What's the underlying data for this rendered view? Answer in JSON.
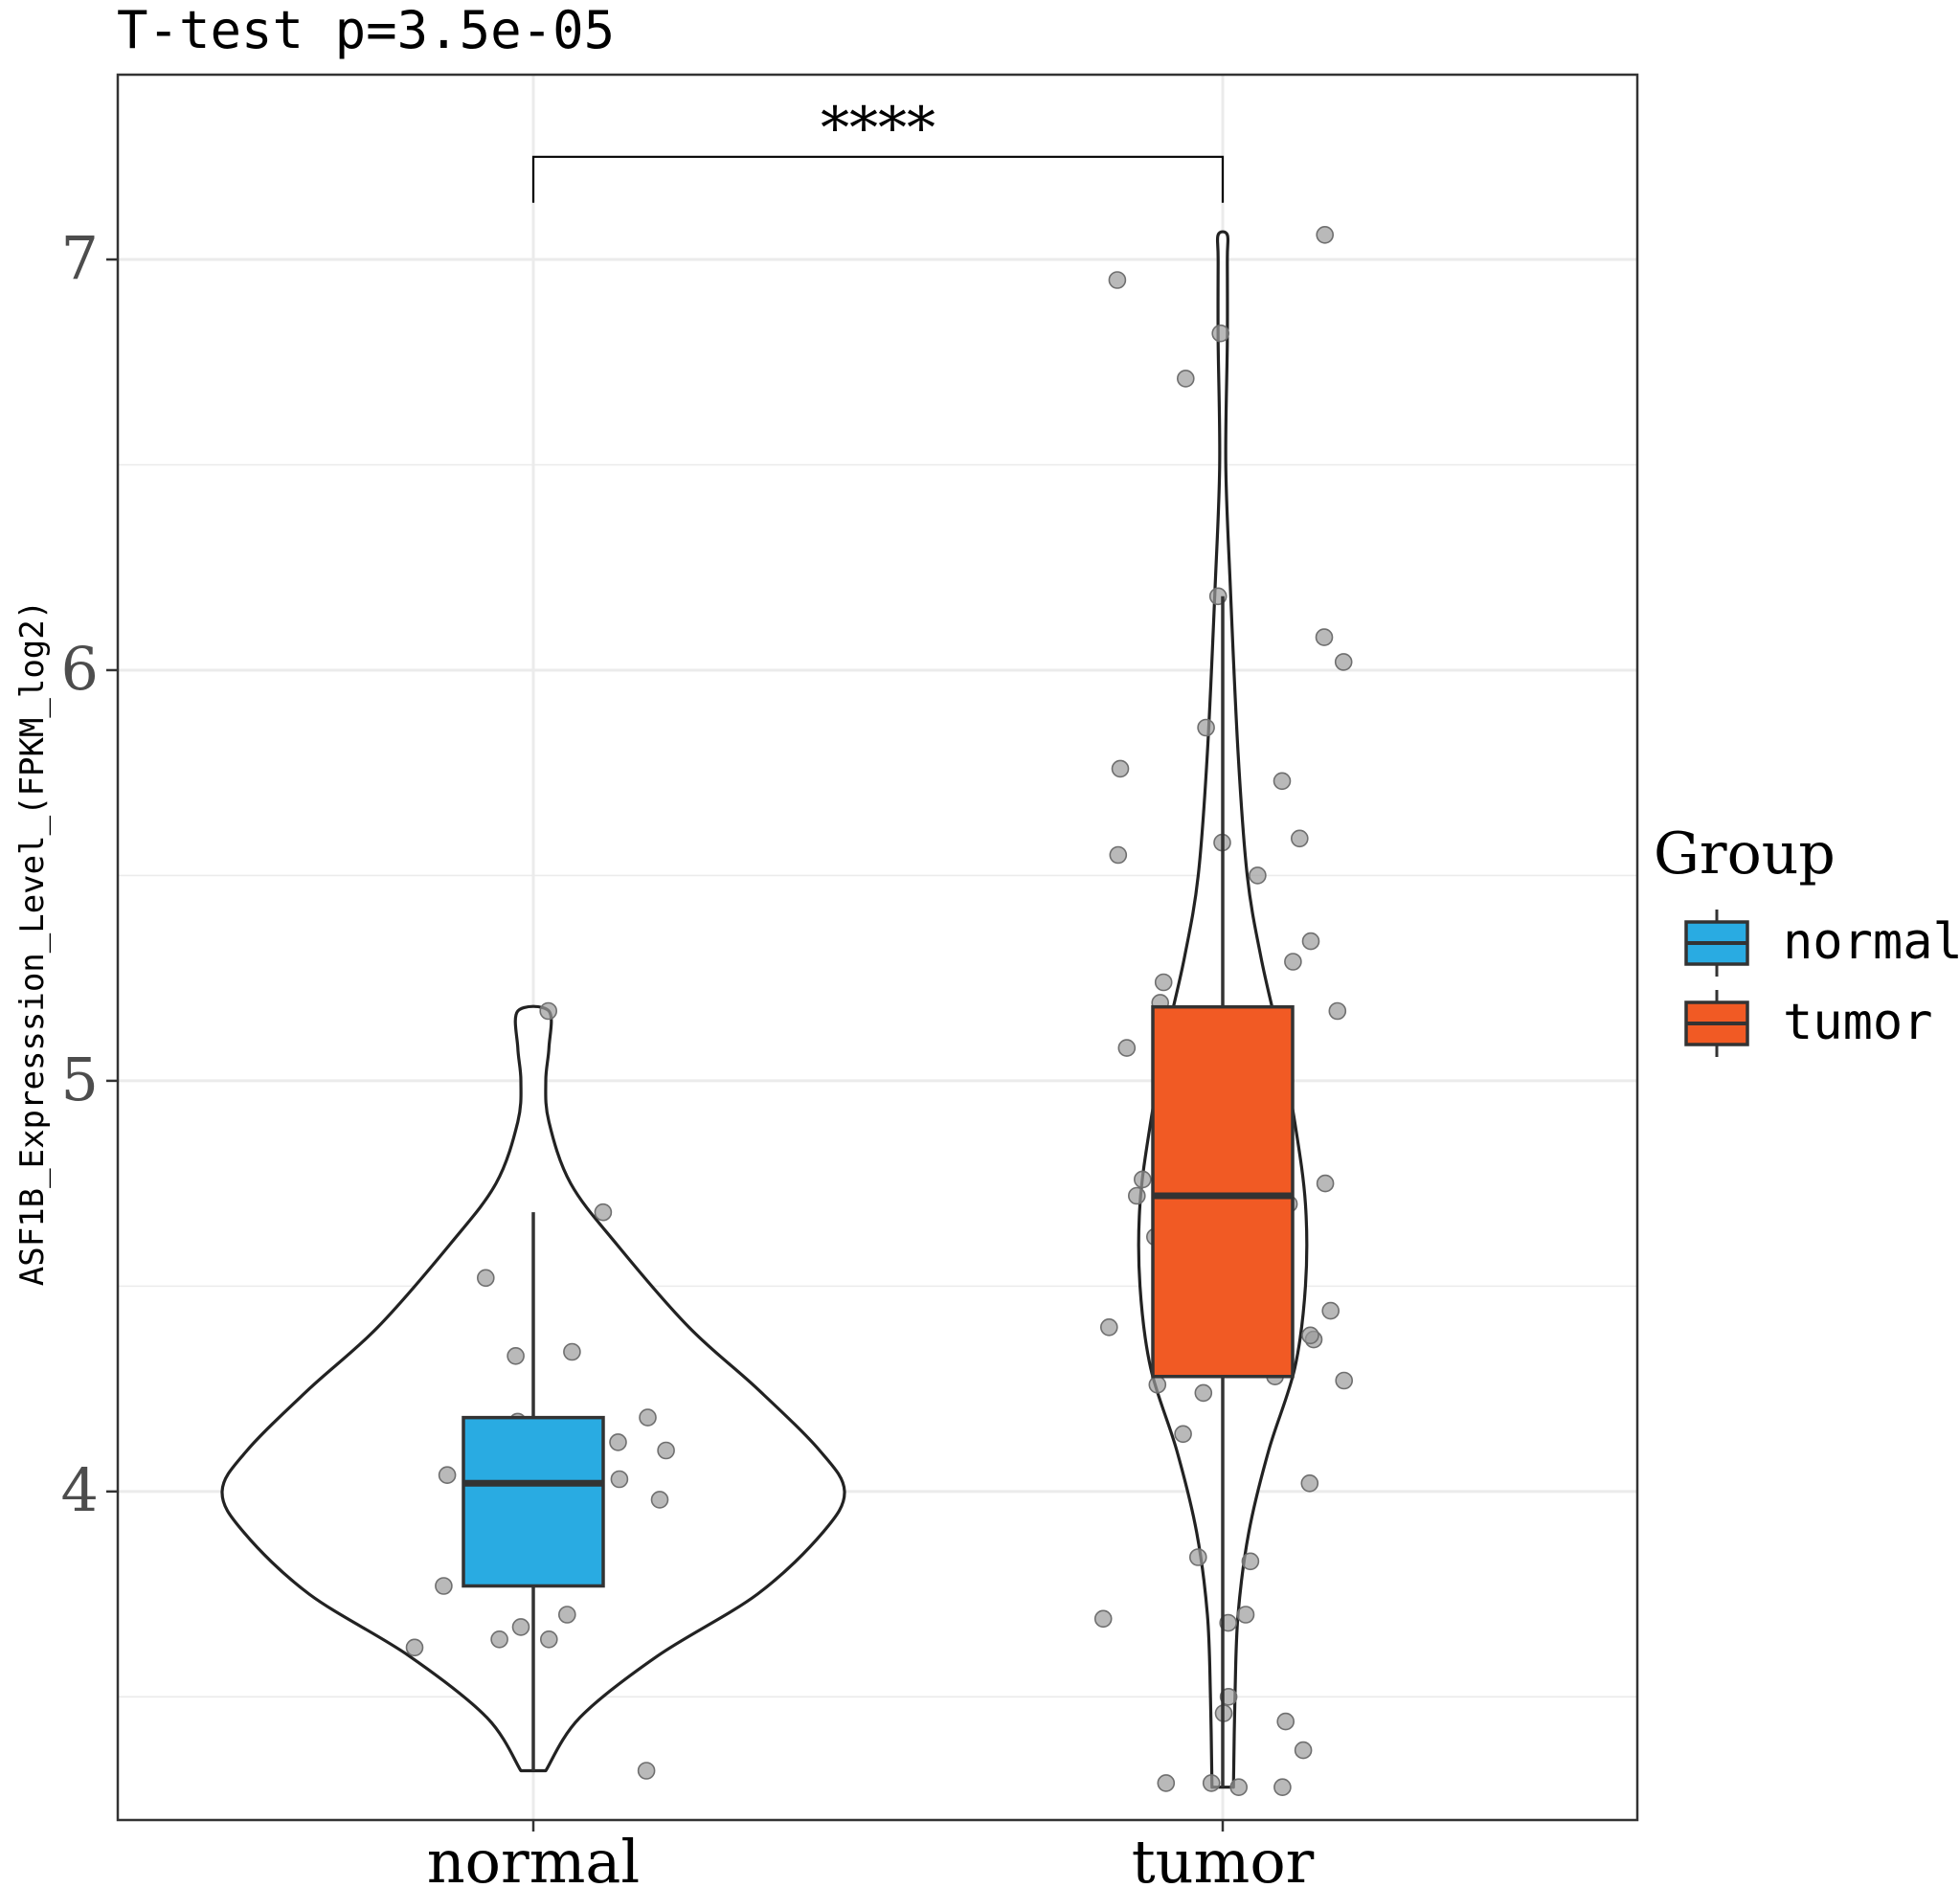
{
  "chart_data": {
    "type": "violin",
    "title": "T-test p=3.5e-05",
    "ylabel": "ASF1B_Expresssion_Level_(FPKM_log2)",
    "xlabel": "",
    "ylim": [
      3.2,
      7.45
    ],
    "yticks": [
      4,
      5,
      6,
      7
    ],
    "categories": [
      "normal",
      "tumor"
    ],
    "grid": true,
    "significance": {
      "label": "****",
      "between": [
        "normal",
        "tumor"
      ],
      "y": 7.25
    },
    "legend": {
      "title": "Group",
      "position": "right",
      "entries": [
        {
          "label": "normal",
          "color": "#29ABE2"
        },
        {
          "label": "tumor",
          "color": "#F15A24"
        }
      ]
    },
    "series": [
      {
        "name": "normal",
        "color": "#29ABE2",
        "box": {
          "min": 3.32,
          "q1": 3.77,
          "median": 4.02,
          "q3": 4.18,
          "max": 4.68
        },
        "violin_range": [
          3.32,
          5.17
        ],
        "violin_profile": [
          [
            3.32,
            0.04
          ],
          [
            3.45,
            0.15
          ],
          [
            3.6,
            0.4
          ],
          [
            3.75,
            0.72
          ],
          [
            3.9,
            0.93
          ],
          [
            4.0,
            1.0
          ],
          [
            4.1,
            0.92
          ],
          [
            4.25,
            0.72
          ],
          [
            4.4,
            0.5
          ],
          [
            4.6,
            0.27
          ],
          [
            4.75,
            0.12
          ],
          [
            4.9,
            0.05
          ],
          [
            5.0,
            0.04
          ],
          [
            5.08,
            0.05
          ],
          [
            5.17,
            0.05
          ]
        ],
        "points": [
          3.32,
          3.62,
          3.64,
          3.64,
          3.67,
          3.7,
          3.77,
          3.94,
          3.95,
          3.98,
          4.03,
          4.04,
          4.1,
          4.12,
          4.17,
          4.18,
          4.33,
          4.34,
          4.52,
          4.68,
          5.17
        ]
      },
      {
        "name": "tumor",
        "color": "#F15A24",
        "box": {
          "min": 3.28,
          "q1": 4.28,
          "median": 4.72,
          "q3": 5.18,
          "max": 6.18
        },
        "violin_range": [
          3.28,
          7.06
        ],
        "violin_profile": [
          [
            3.28,
            0.07
          ],
          [
            3.5,
            0.08
          ],
          [
            3.7,
            0.1
          ],
          [
            3.9,
            0.17
          ],
          [
            4.1,
            0.3
          ],
          [
            4.3,
            0.47
          ],
          [
            4.5,
            0.54
          ],
          [
            4.7,
            0.54
          ],
          [
            4.9,
            0.47
          ],
          [
            5.1,
            0.37
          ],
          [
            5.3,
            0.25
          ],
          [
            5.5,
            0.16
          ],
          [
            5.8,
            0.1
          ],
          [
            6.2,
            0.05
          ],
          [
            6.5,
            0.02
          ],
          [
            6.8,
            0.03
          ],
          [
            7.0,
            0.03
          ],
          [
            7.06,
            0.03
          ]
        ],
        "points": [
          3.28,
          3.28,
          3.29,
          3.29,
          3.37,
          3.44,
          3.46,
          3.5,
          3.68,
          3.69,
          3.7,
          3.83,
          3.84,
          4.02,
          4.14,
          4.24,
          4.26,
          4.27,
          4.28,
          4.37,
          4.38,
          4.4,
          4.42,
          4.44,
          4.62,
          4.7,
          4.72,
          4.75,
          4.76,
          4.76,
          4.8,
          4.82,
          4.86,
          5.07,
          5.08,
          5.15,
          5.17,
          5.19,
          5.24,
          5.29,
          5.34,
          5.5,
          5.55,
          5.58,
          5.59,
          5.73,
          5.76,
          5.86,
          6.02,
          6.08,
          6.18,
          6.71,
          6.82,
          6.95,
          7.06
        ]
      }
    ]
  }
}
